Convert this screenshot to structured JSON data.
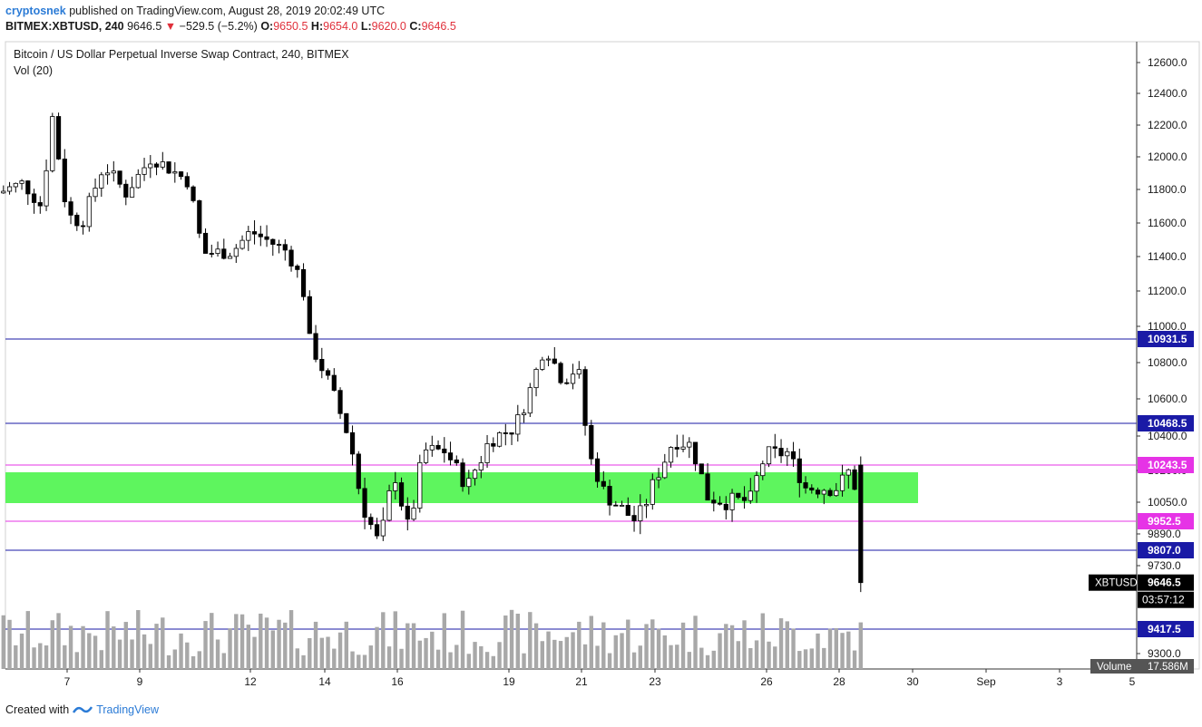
{
  "header": {
    "author": "cryptosnek",
    "published": "published on TradingView.com, August 28, 2019 20:02:49 UTC",
    "symbol": "BITMEX:XBTUSD, 240",
    "last": "9646.5",
    "change": "−529.5 (−5.2%)",
    "o_label": "O:",
    "o": "9650.5",
    "h_label": "H:",
    "h": "9654.0",
    "l_label": "L:",
    "l": "9620.0",
    "c_label": "C:",
    "c": "9646.5"
  },
  "legend": {
    "title": "Bitcoin / US Dollar Perpetual Inverse Swap Contract, 240, BITMEX",
    "vol": "Vol (20)"
  },
  "footer": {
    "created_with": "Created with",
    "brand": "TradingView"
  },
  "colors": {
    "candle_up_fill": "#ffffff",
    "candle_down_fill": "#000000",
    "wick": "#000000",
    "volume": "#a8a8a8",
    "zone": "#5ef55e",
    "blue_line": "#1a1aa6",
    "magenta_line": "#e633e6",
    "grid_border": "#cccccc"
  },
  "chart_data": {
    "type": "candlestick",
    "y_axis_ticks": [
      "12600.0",
      "12400.0",
      "12200.0",
      "12000.0",
      "11800.0",
      "11600.0",
      "11400.0",
      "11200.0",
      "11000.0",
      "10800.0",
      "10600.0",
      "10400.0",
      "10200.0",
      "10050.0",
      "9890.0",
      "9730.0",
      "9300.0"
    ],
    "x_axis_ticks": [
      "7",
      "9",
      "12",
      "14",
      "16",
      "19",
      "21",
      "23",
      "26",
      "28",
      "30",
      "Sep",
      "3",
      "5"
    ],
    "horizontal_levels": [
      {
        "value": 10931.5,
        "label": "10931.5",
        "color": "#1a1aa6"
      },
      {
        "value": 10468.5,
        "label": "10468.5",
        "color": "#1a1aa6"
      },
      {
        "value": 10243.5,
        "label": "10243.5",
        "color": "#e633e6"
      },
      {
        "value": 9952.5,
        "label": "9952.5",
        "color": "#e633e6"
      },
      {
        "value": 9807.0,
        "label": "9807.0",
        "color": "#1a1aa6"
      },
      {
        "value": 9417.5,
        "label": "9417.5",
        "color": "#1a1aa6"
      }
    ],
    "zone": {
      "from": 10080,
      "to": 10200,
      "color": "#5ef55e"
    },
    "price_tag": {
      "symbol": "XBTUSD",
      "value": "9646.5",
      "timer": "03:57:12"
    },
    "volume_tag": {
      "label": "Volume",
      "value": "17.586M"
    },
    "anchors": [
      {
        "day": 5.1,
        "price": 11780
      },
      {
        "day": 5.8,
        "price": 11840
      },
      {
        "day": 6.3,
        "price": 11700
      },
      {
        "day": 6.6,
        "price": 12250
      },
      {
        "day": 7.0,
        "price": 11650
      },
      {
        "day": 7.4,
        "price": 11600
      },
      {
        "day": 8.0,
        "price": 11950
      },
      {
        "day": 8.6,
        "price": 11780
      },
      {
        "day": 9.3,
        "price": 12000
      },
      {
        "day": 10.3,
        "price": 11850
      },
      {
        "day": 10.7,
        "price": 11420
      },
      {
        "day": 11.5,
        "price": 11430
      },
      {
        "day": 12.0,
        "price": 11550
      },
      {
        "day": 13.0,
        "price": 11430
      },
      {
        "day": 13.4,
        "price": 11250
      },
      {
        "day": 13.6,
        "price": 10920
      },
      {
        "day": 14.1,
        "price": 10700
      },
      {
        "day": 14.7,
        "price": 10380
      },
      {
        "day": 15.0,
        "price": 10050
      },
      {
        "day": 15.5,
        "price": 9830
      },
      {
        "day": 15.9,
        "price": 10200
      },
      {
        "day": 16.3,
        "price": 9900
      },
      {
        "day": 16.7,
        "price": 10320
      },
      {
        "day": 17.3,
        "price": 10320
      },
      {
        "day": 17.9,
        "price": 10120
      },
      {
        "day": 18.5,
        "price": 10380
      },
      {
        "day": 19.2,
        "price": 10450
      },
      {
        "day": 19.6,
        "price": 10650
      },
      {
        "day": 20.0,
        "price": 10900
      },
      {
        "day": 20.5,
        "price": 10700
      },
      {
        "day": 20.9,
        "price": 10780
      },
      {
        "day": 21.2,
        "price": 10300
      },
      {
        "day": 21.6,
        "price": 10100
      },
      {
        "day": 22.0,
        "price": 10030
      },
      {
        "day": 22.5,
        "price": 9950
      },
      {
        "day": 23.0,
        "price": 10150
      },
      {
        "day": 23.5,
        "price": 10380
      },
      {
        "day": 24.0,
        "price": 10350
      },
      {
        "day": 24.4,
        "price": 10080
      },
      {
        "day": 25.0,
        "price": 10050
      },
      {
        "day": 25.6,
        "price": 10060
      },
      {
        "day": 26.0,
        "price": 10300
      },
      {
        "day": 26.6,
        "price": 10310
      },
      {
        "day": 27.1,
        "price": 10120
      },
      {
        "day": 28.0,
        "price": 10120
      },
      {
        "day": 28.4,
        "price": 10230
      },
      {
        "day": 28.6,
        "price": 9650
      }
    ]
  }
}
